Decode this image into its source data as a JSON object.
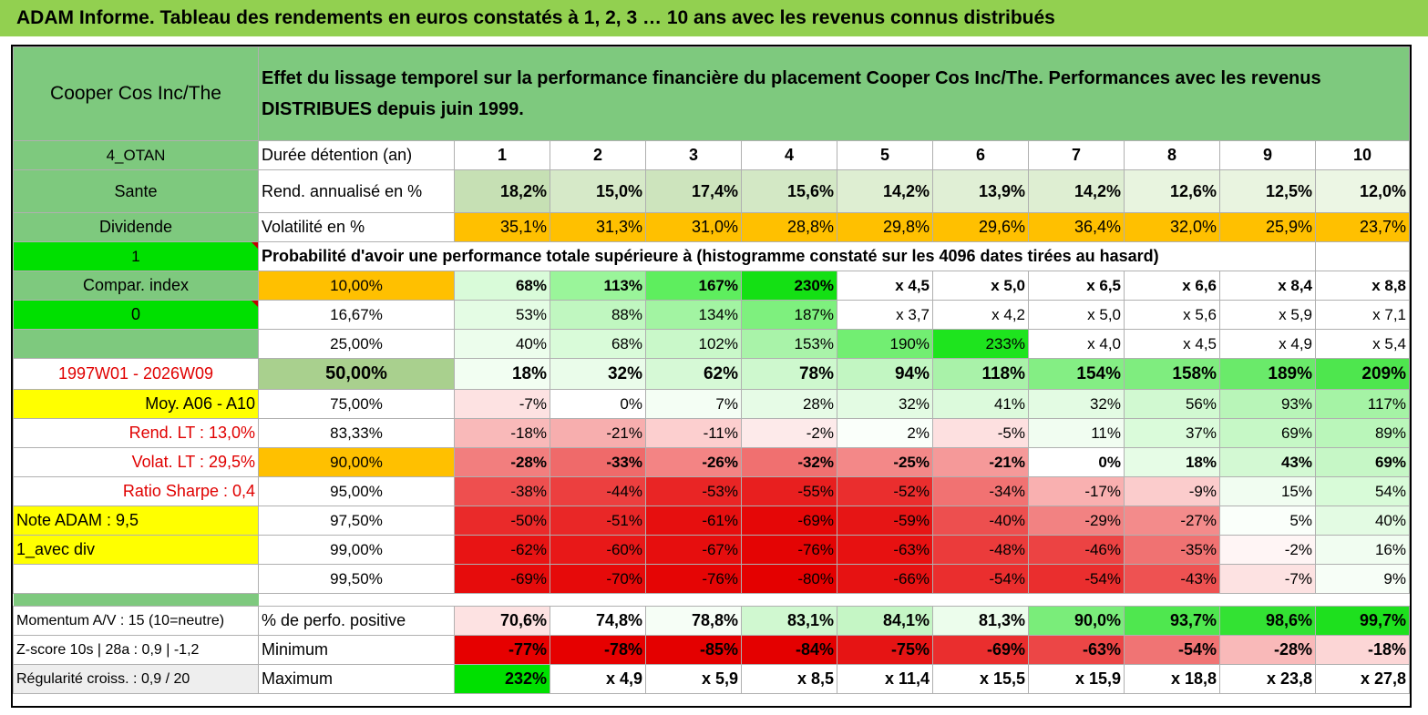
{
  "title": "ADAM Informe. Tableau des rendements en euros constatés à 1, 2, 3 … 10 ans avec les revenus connus distribués",
  "header": {
    "name": "Cooper Cos Inc/The",
    "desc_line1": "Effet du lissage temporel sur la performance financière du placement Cooper Cos Inc/The. Performances avec les revenus",
    "desc_line2": "DISTRIBUES depuis juin 1999."
  },
  "left": {
    "code": "4_OTAN",
    "sector": "Sante",
    "type": "Dividende",
    "one": "1",
    "compar": "Compar. index",
    "zero": "0",
    "period": "1997W01 - 2026W09",
    "moy": "Moy. A06 - A10",
    "rend_lt": "Rend. LT :   13,0%",
    "volat_lt": "Volat. LT :   29,5%",
    "sharpe": "Ratio Sharpe :    0,4",
    "note": "Note ADAM : 9,5",
    "avec_div": "1_avec div",
    "momentum": "Momentum A/V : 15 (10=neutre)",
    "zscore": "Z-score 10s | 28a : 0,9 | -1,2",
    "regularite": "Régularité croiss. : 0,9 / 20"
  },
  "labels": {
    "duree": "Durée détention (an)",
    "rend": "Rend. annualisé en %",
    "vol": "Volatilité en %",
    "prob": "Probabilité d'avoir une performance totale supérieure à (histogramme constaté sur les 4096 dates tirées au hasard)",
    "pos": "% de perfo. positive",
    "min": "Minimum",
    "max": "Maximum"
  },
  "years": [
    "1",
    "2",
    "3",
    "4",
    "5",
    "6",
    "7",
    "8",
    "9",
    "10"
  ],
  "rend": [
    "18,2%",
    "15,0%",
    "17,4%",
    "15,6%",
    "14,2%",
    "13,9%",
    "14,2%",
    "12,6%",
    "12,5%",
    "12,0%"
  ],
  "vol": [
    "35,1%",
    "31,3%",
    "31,0%",
    "28,8%",
    "29,8%",
    "29,6%",
    "36,4%",
    "32,0%",
    "25,9%",
    "23,7%"
  ],
  "prob_rows": [
    {
      "p": "10,00%",
      "v": [
        "68%",
        "113%",
        "167%",
        "230%",
        "x 4,5",
        "x 5,0",
        "x 6,5",
        "x 6,6",
        "x 8,4",
        "x 8,8"
      ]
    },
    {
      "p": "16,67%",
      "v": [
        "53%",
        "88%",
        "134%",
        "187%",
        "x 3,7",
        "x 4,2",
        "x 5,0",
        "x 5,6",
        "x 5,9",
        "x 7,1"
      ]
    },
    {
      "p": "25,00%",
      "v": [
        "40%",
        "68%",
        "102%",
        "153%",
        "190%",
        "233%",
        "x 4,0",
        "x 4,5",
        "x 4,9",
        "x 5,4"
      ]
    },
    {
      "p": "50,00%",
      "v": [
        "18%",
        "32%",
        "62%",
        "78%",
        "94%",
        "118%",
        "154%",
        "158%",
        "189%",
        "209%"
      ]
    },
    {
      "p": "75,00%",
      "v": [
        "-7%",
        "0%",
        "7%",
        "28%",
        "32%",
        "41%",
        "32%",
        "56%",
        "93%",
        "117%"
      ]
    },
    {
      "p": "83,33%",
      "v": [
        "-18%",
        "-21%",
        "-11%",
        "-2%",
        "2%",
        "-5%",
        "11%",
        "37%",
        "69%",
        "89%"
      ]
    },
    {
      "p": "90,00%",
      "v": [
        "-28%",
        "-33%",
        "-26%",
        "-32%",
        "-25%",
        "-21%",
        "0%",
        "18%",
        "43%",
        "69%"
      ]
    },
    {
      "p": "95,00%",
      "v": [
        "-38%",
        "-44%",
        "-53%",
        "-55%",
        "-52%",
        "-34%",
        "-17%",
        "-9%",
        "15%",
        "54%"
      ]
    },
    {
      "p": "97,50%",
      "v": [
        "-50%",
        "-51%",
        "-61%",
        "-69%",
        "-59%",
        "-40%",
        "-29%",
        "-27%",
        "5%",
        "40%"
      ]
    },
    {
      "p": "99,00%",
      "v": [
        "-62%",
        "-60%",
        "-67%",
        "-76%",
        "-63%",
        "-48%",
        "-46%",
        "-35%",
        "-2%",
        "16%"
      ]
    },
    {
      "p": "99,50%",
      "v": [
        "-69%",
        "-70%",
        "-76%",
        "-80%",
        "-66%",
        "-54%",
        "-54%",
        "-43%",
        "-7%",
        "9%"
      ]
    }
  ],
  "pos": [
    "70,6%",
    "74,8%",
    "78,8%",
    "83,1%",
    "84,1%",
    "81,3%",
    "90,0%",
    "93,7%",
    "98,6%",
    "99,7%"
  ],
  "min": [
    "-77%",
    "-78%",
    "-85%",
    "-84%",
    "-75%",
    "-69%",
    "-63%",
    "-54%",
    "-28%",
    "-18%"
  ],
  "max": [
    "232%",
    "x 4,9",
    "x 5,9",
    "x 8,5",
    "x 11,4",
    "x 15,5",
    "x 15,9",
    "x 18,8",
    "x 23,8",
    "x 27,8"
  ],
  "colors": {
    "header_green": "#7ec97e",
    "title_green": "#92d050",
    "bright_green": "#00e000",
    "orange": "#ffc000",
    "yellow": "#ffff00",
    "red_text": "#e00000",
    "rend_bg": "#c6e0b4",
    "grey": "#eeeeee"
  }
}
